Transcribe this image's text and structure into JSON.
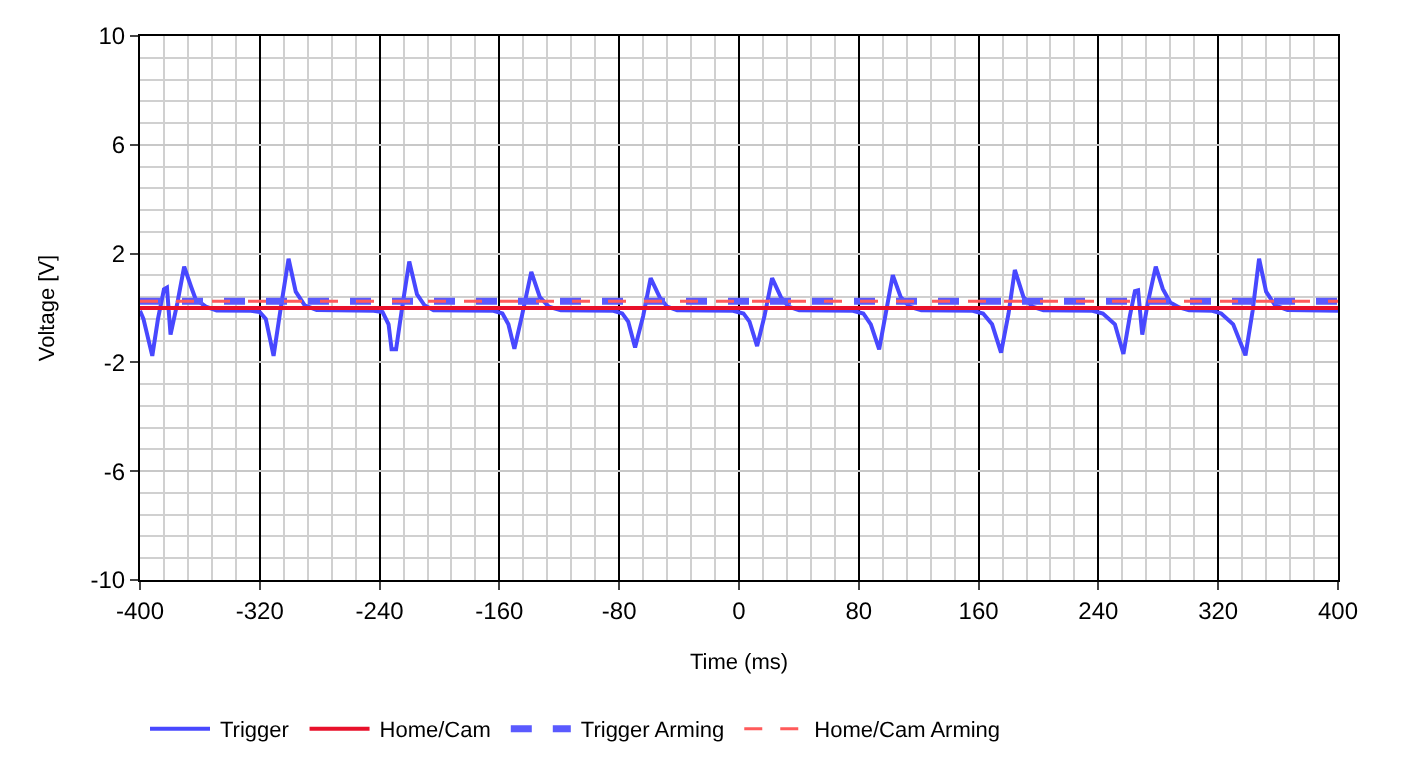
{
  "chart_data": {
    "type": "line",
    "xlabel": "Time (ms)",
    "ylabel": "Voltage [V]",
    "xlim": [
      -400,
      400
    ],
    "xticks": [
      -400,
      -320,
      -240,
      -160,
      -80,
      0,
      80,
      160,
      240,
      320,
      400
    ],
    "ylim": [
      -10,
      10
    ],
    "yticks": [
      -10,
      -6,
      -2,
      2,
      6,
      10
    ],
    "grid": true,
    "legend": "bottom left",
    "series": [
      {
        "name": "Trigger",
        "color": "#4848ff",
        "line_style": "solid",
        "x": [
          -400,
          -397.7,
          -391.8,
          -388,
          -384,
          -382,
          -379.6,
          -375,
          -370.5,
          -366,
          -362.9,
          -356,
          -348.8,
          -326,
          -320,
          -316,
          -310.8,
          -306,
          -300.8,
          -296,
          -290,
          -282,
          -244,
          -238,
          -234,
          -232,
          -229,
          -225,
          -220.2,
          -215,
          -210,
          -204,
          -164,
          -158,
          -154,
          -150,
          -145,
          -138.7,
          -133,
          -127,
          -119,
          -84,
          -78,
          -74,
          -69.4,
          -64,
          -59,
          -53,
          -48,
          -41.3,
          -4,
          3,
          7,
          12.1,
          17,
          22.1,
          28,
          33,
          40.2,
          76,
          83,
          88,
          93.6,
          98,
          102.7,
          108,
          114,
          121.7,
          156,
          163,
          169,
          175,
          180,
          184.2,
          190,
          196,
          203.3,
          236,
          243,
          251,
          256.7,
          261,
          264.4,
          266.5,
          269.3,
          273,
          278.3,
          283,
          288,
          294,
          300.6,
          316,
          322,
          330,
          338.2,
          343,
          347.3,
          352,
          358,
          366.3,
          400
        ],
        "values": [
          -0.1,
          -0.4,
          -1.76,
          -0.4,
          0.69,
          0.75,
          -0.98,
          0.2,
          1.52,
          0.8,
          0.33,
          0.05,
          -0.09,
          -0.1,
          -0.15,
          -0.4,
          -1.76,
          0,
          1.81,
          0.6,
          0.1,
          -0.07,
          -0.1,
          -0.15,
          -0.6,
          -1.52,
          -1.52,
          0,
          1.71,
          0.5,
          0.1,
          -0.08,
          -0.1,
          -0.2,
          -0.6,
          -1.5,
          -0.3,
          1.33,
          0.4,
          0.05,
          -0.08,
          -0.1,
          -0.2,
          -0.5,
          -1.45,
          -0.3,
          1.1,
          0.4,
          0.05,
          -0.08,
          -0.1,
          -0.2,
          -0.5,
          -1.4,
          -0.3,
          1.1,
          0.4,
          0.05,
          -0.08,
          -0.1,
          -0.2,
          -0.6,
          -1.52,
          -0.2,
          1.21,
          0.4,
          0.05,
          -0.08,
          -0.1,
          -0.2,
          -0.6,
          -1.64,
          -0.2,
          1.4,
          0.4,
          0.05,
          -0.08,
          -0.1,
          -0.2,
          -0.6,
          -1.69,
          -0.3,
          0.62,
          0.65,
          -0.98,
          0.2,
          1.52,
          0.7,
          0.2,
          0.02,
          -0.08,
          -0.1,
          -0.2,
          -0.6,
          -1.74,
          -0.1,
          1.81,
          0.6,
          0.1,
          -0.07,
          -0.1
        ]
      },
      {
        "name": "Home/Cam",
        "color": "#e8102a",
        "line_style": "solid",
        "x": [
          -400,
          400
        ],
        "values": [
          0,
          0
        ]
      },
      {
        "name": "Trigger Arming",
        "color": "#5a5aff",
        "line_style": "dashed",
        "x": [
          -400,
          400
        ],
        "values": [
          0.25,
          0.25
        ]
      },
      {
        "name": "Home/Cam Arming",
        "color": "#ff5a5a",
        "line_style": "dashed",
        "x": [
          -400,
          400
        ],
        "values": [
          0.25,
          0.25
        ]
      }
    ]
  }
}
